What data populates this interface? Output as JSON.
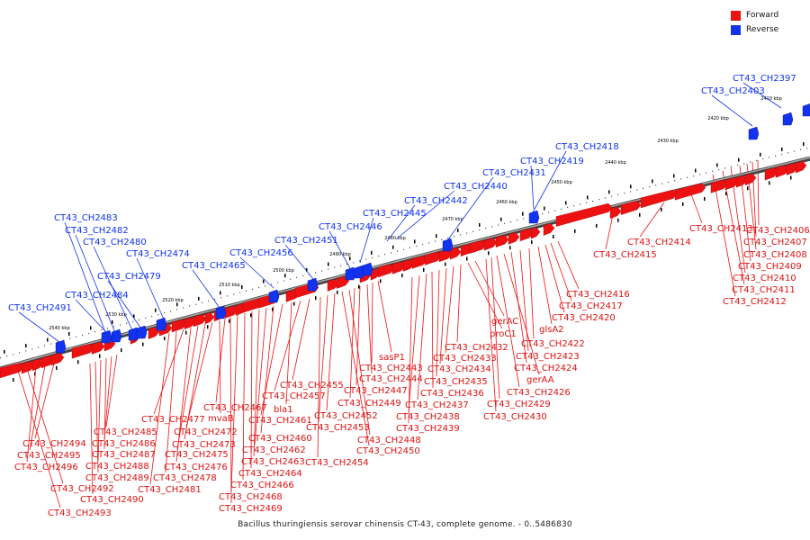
{
  "legend": {
    "forward": {
      "label": "Forward",
      "color": "#ee1111"
    },
    "reverse": {
      "label": "Reverse",
      "color": "#1133ee"
    }
  },
  "caption": "Bacillus thuringiensis serovar chinensis CT-43, complete genome. - 0..5486830",
  "axis_ticks": [
    "2410 kbp",
    "2420 kbp",
    "2430 kbp",
    "2440 kbp",
    "2450 kbp",
    "2460 kbp",
    "2470 kbp",
    "2480 kbp",
    "2490 kbp",
    "2500 kbp",
    "2510 kbp",
    "2520 kbp",
    "2530 kbp",
    "2540 kbp"
  ],
  "reverse_labels": [
    "CT43_CH2397",
    "CT43_CH2403",
    "CT43_CH2418",
    "CT43_CH2419",
    "CT43_CH2431",
    "CT43_CH2440",
    "CT43_CH2442",
    "CT43_CH2445",
    "CT43_CH2446",
    "CT43_CH2451",
    "CT43_CH2456",
    "CT43_CH2465",
    "CT43_CH2474",
    "CT43_CH2483",
    "CT43_CH2482",
    "CT43_CH2480",
    "CT43_CH2479",
    "CT43_CH2484",
    "CT43_CH2491"
  ],
  "forward_labels": [
    "CT43_CH2406",
    "CT43_CH2407",
    "CT43_CH2408",
    "CT43_CH2409",
    "CT43_CH2410",
    "CT43_CH2411",
    "CT43_CH2412",
    "CT43_CH2413",
    "CT43_CH2414",
    "CT43_CH2415",
    "CT43_CH2416",
    "CT43_CH2417",
    "CT43_CH2420",
    "glsA2",
    "CT43_CH2422",
    "CT43_CH2423",
    "CT43_CH2424",
    "gerAA",
    "CT43_CH2426",
    "CT43_CH2429",
    "CT43_CH2430",
    "gerAC",
    "proC1",
    "CT43_CH2432",
    "CT43_CH2433",
    "CT43_CH2434",
    "CT43_CH2435",
    "CT43_CH2436",
    "CT43_CH2437",
    "CT43_CH2438",
    "CT43_CH2439",
    "sasP1",
    "CT43_CH2443",
    "CT43_CH2444",
    "CT43_CH2447",
    "CT43_CH2449",
    "CT43_CH2448",
    "CT43_CH2450",
    "CT43_CH2452",
    "CT43_CH2453",
    "CT43_CH2454",
    "CT43_CH2455",
    "CT43_CH2457",
    "bla1",
    "CT43_CH2461",
    "CT43_CH2460",
    "CT43_CH2462",
    "CT43_CH2463",
    "CT43_CH2464",
    "CT43_CH2466",
    "CT43_CH2468",
    "CT43_CH2469",
    "CT43_CH2467",
    "mvaB",
    "CT43_CH2472",
    "CT43_CH2473",
    "CT43_CH2475",
    "CT43_CH2476",
    "CT43_CH2477",
    "CT43_CH2478",
    "CT43_CH2481",
    "CT43_CH2485",
    "CT43_CH2486",
    "CT43_CH2487",
    "CT43_CH2488",
    "CT43_CH2489",
    "CT43_CH2490",
    "CT43_CH2494",
    "CT43_CH2495",
    "CT43_CH2496",
    "CT43_CH2492",
    "CT43_CH2493"
  ]
}
